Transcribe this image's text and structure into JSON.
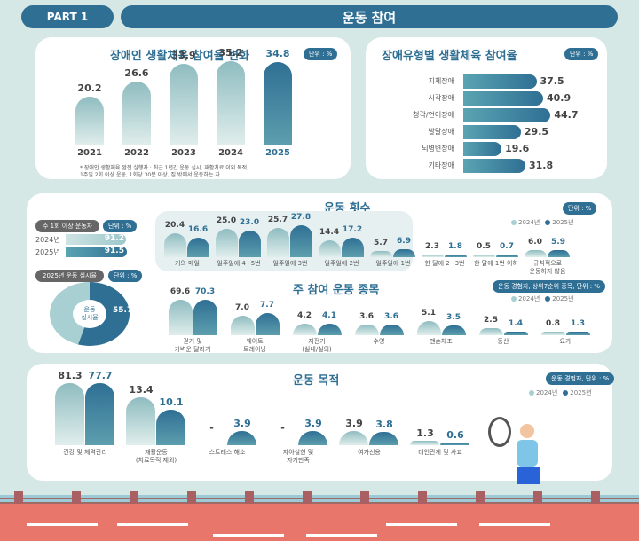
{
  "header": {
    "part": "PART 1",
    "title": "운동 참여"
  },
  "legend": {
    "y2024": "2024년",
    "y2025": "2025년"
  },
  "chart_data": [
    {
      "id": "participation_trend",
      "type": "bar",
      "title": "장애인 생활체육 참여율 변화",
      "unit": "단위 : %",
      "categories": [
        "2021",
        "2022",
        "2023",
        "2024",
        "2025"
      ],
      "values": [
        20.2,
        26.6,
        33.9,
        35.2,
        34.8
      ],
      "note": "* 장애인 생활체육 완전 실행자 : 최근 1년간 운동 실시, 재활치료 이외 목적,\n1주일 2회 이상 운동, 1회당 30분 이상, 집 밖에서 운동하는 자"
    },
    {
      "id": "by_disability_type",
      "type": "bar",
      "orientation": "horizontal",
      "title": "장애유형별 생활체육 참여율",
      "unit": "단위 : %",
      "categories": [
        "지체장애",
        "시각장애",
        "청각/언어장애",
        "발달장애",
        "뇌병변장애",
        "기타장애"
      ],
      "values": [
        37.5,
        40.9,
        44.7,
        29.5,
        19.6,
        31.8
      ]
    },
    {
      "id": "exercise_frequency",
      "type": "bar",
      "title": "운동 횟수",
      "unit": "단위 : %",
      "categories": [
        "거의 매일",
        "일주일에 4~5번",
        "일주일에 3번",
        "일주일에 2번",
        "일주일에 1번",
        "한 달에 2~3번",
        "한 달에 1번 이하",
        "규칙적으로\n운동하지 않음"
      ],
      "series": [
        {
          "name": "2024년",
          "values": [
            20.4,
            25.0,
            25.7,
            14.4,
            5.7,
            2.3,
            0.5,
            6.0
          ]
        },
        {
          "name": "2025년",
          "values": [
            16.6,
            23.0,
            27.8,
            17.2,
            6.9,
            1.8,
            0.7,
            5.9
          ]
        }
      ]
    },
    {
      "id": "weekly_exercisers",
      "type": "bar",
      "orientation": "horizontal",
      "title": "주 1회 이상 운동자",
      "unit": "단위 : %",
      "categories": [
        "2024년",
        "2025년"
      ],
      "values": [
        91.2,
        91.5
      ]
    },
    {
      "id": "exercise_rate_2025",
      "type": "pie",
      "title": "2025년 운동 실시율",
      "unit": "단위 : %",
      "center_label": "운동\n실시율",
      "values": [
        55.7
      ]
    },
    {
      "id": "main_sports",
      "type": "bar",
      "title": "주 참여 운동 종목",
      "unit": "운동 경험자, 상위7순위 종목, 단위 : %",
      "categories": [
        "걷기 및\n가벼운 달리기",
        "웨이트\n트레이닝",
        "자전거\n(실내/실외)",
        "수영",
        "맨손체조",
        "등산",
        "요가"
      ],
      "series": [
        {
          "name": "2024년",
          "values": [
            69.6,
            7.0,
            4.2,
            3.6,
            5.1,
            2.5,
            0.8
          ]
        },
        {
          "name": "2025년",
          "values": [
            70.3,
            7.7,
            4.1,
            3.6,
            3.5,
            1.4,
            1.3
          ]
        }
      ]
    },
    {
      "id": "exercise_purpose",
      "type": "bar",
      "title": "운동 목적",
      "unit": "운동 경험자, 단위 : %",
      "categories": [
        "건강 및 체력관리",
        "재활운동\n(치료목적 제외)",
        "스트레스 해소",
        "자아실현 및\n자기만족",
        "여가선용",
        "대인관계 및 사교"
      ],
      "series": [
        {
          "name": "2024년",
          "values": [
            81.3,
            13.4,
            "-",
            "-",
            3.9,
            1.3
          ]
        },
        {
          "name": "2025년",
          "values": [
            77.7,
            10.1,
            3.9,
            3.9,
            3.8,
            0.6
          ]
        }
      ]
    }
  ]
}
